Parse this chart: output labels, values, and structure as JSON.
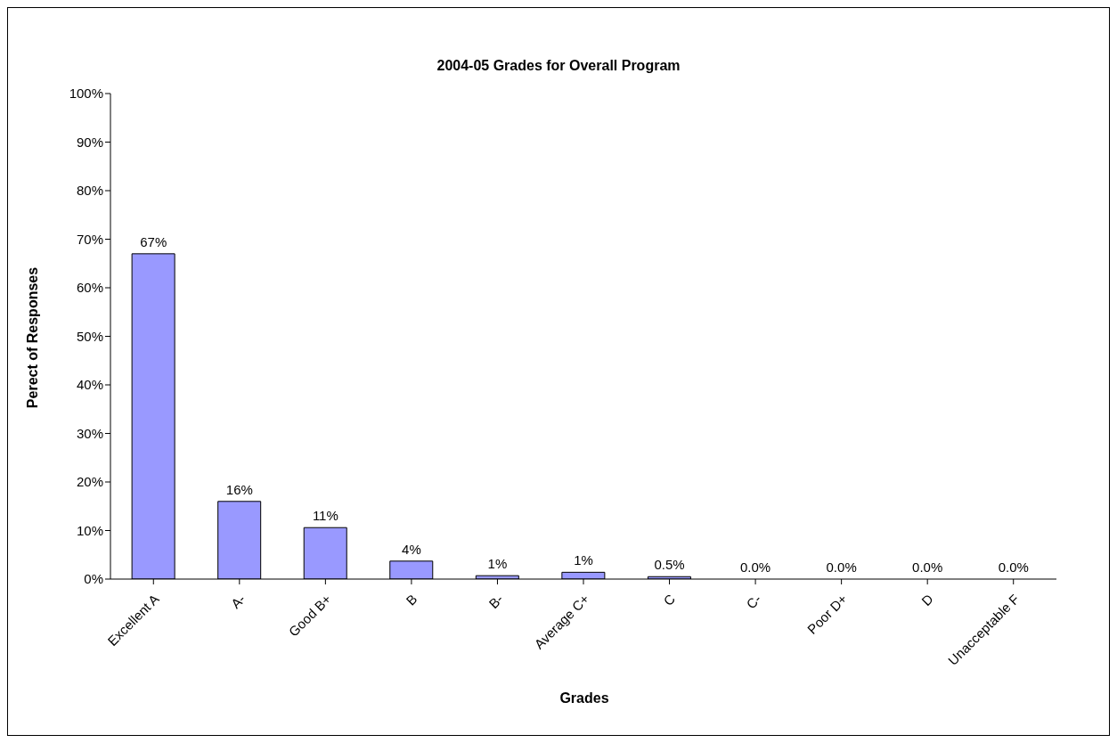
{
  "chart_data": {
    "type": "bar",
    "title": "2004-05 Grades for Overall Program",
    "xlabel": "Grades",
    "ylabel": "Perect of Responses",
    "categories": [
      "Excellent A",
      "A-",
      "Good B+",
      "B",
      "B-",
      "Average C+",
      "C",
      "C-",
      "Poor D+",
      "D",
      "Unacceptable F"
    ],
    "values": [
      67,
      16,
      10.6,
      3.7,
      0.7,
      1.4,
      0.5,
      0,
      0,
      0,
      0
    ],
    "value_labels": [
      "67%",
      "16%",
      "11%",
      "4%",
      "1%",
      "1%",
      "0.5%",
      "0.0%",
      "0.0%",
      "0.0%",
      "0.0%"
    ],
    "color": "#9999ff",
    "ylim": [
      0,
      100
    ],
    "yticks": [
      {
        "value": 0,
        "label": "0%"
      },
      {
        "value": 10,
        "label": "10%"
      },
      {
        "value": 20,
        "label": "20%"
      },
      {
        "value": 30,
        "label": "30%"
      },
      {
        "value": 40,
        "label": "40%"
      },
      {
        "value": 50,
        "label": "50%"
      },
      {
        "value": 60,
        "label": "60%"
      },
      {
        "value": 70,
        "label": "70%"
      },
      {
        "value": 80,
        "label": "80%"
      },
      {
        "value": 90,
        "label": "90%"
      },
      {
        "value": 100,
        "label": "100%"
      }
    ],
    "grid": false,
    "legend": false
  }
}
